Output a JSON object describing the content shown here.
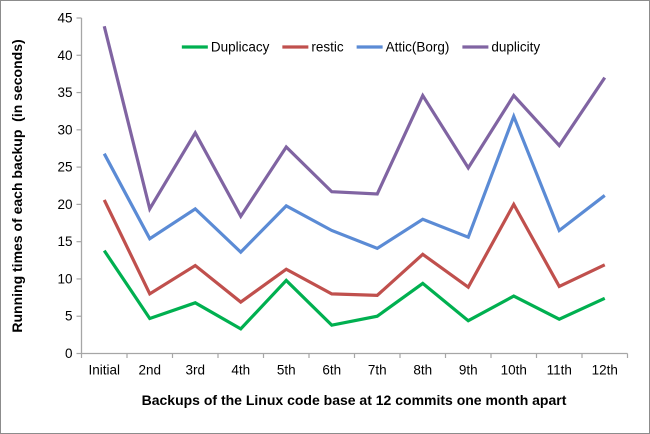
{
  "window": {
    "background": "#ffffff",
    "border_color": "#8c8c8c"
  },
  "chart_data": {
    "type": "line",
    "title": "",
    "xlabel": "Backups of the Linux code base at 12 commits one month apart",
    "ylabel": "Running times of each backup  (in seconds)",
    "ylim": [
      0,
      45
    ],
    "ytick_step": 5,
    "grid": false,
    "legend_position": "top-center",
    "axis_color": "#a6a6a6",
    "text_color": "#000000",
    "line_width": 3.2,
    "categories": [
      "Initial",
      "2nd",
      "3rd",
      "4th",
      "5th",
      "6th",
      "7th",
      "8th",
      "9th",
      "10th",
      "11th",
      "12th"
    ],
    "series": [
      {
        "name": "Duplicacy",
        "color": "#00B050",
        "values": [
          13.8,
          4.7,
          6.8,
          3.3,
          9.8,
          3.8,
          5.0,
          9.4,
          4.4,
          7.7,
          4.6,
          7.4
        ]
      },
      {
        "name": "restic",
        "color": "#C0504D",
        "values": [
          20.6,
          8.0,
          11.8,
          6.9,
          11.3,
          8.0,
          7.8,
          13.3,
          8.9,
          20.0,
          9.0,
          11.9
        ]
      },
      {
        "name": "Attic(Borg)",
        "color": "#5B8BD5",
        "values": [
          26.8,
          15.4,
          19.4,
          13.6,
          19.8,
          16.5,
          14.1,
          18.0,
          15.6,
          31.8,
          16.5,
          21.2
        ]
      },
      {
        "name": "duplicity",
        "color": "#8064A2",
        "values": [
          43.9,
          19.4,
          29.6,
          18.4,
          27.7,
          21.7,
          21.4,
          34.6,
          24.9,
          34.6,
          27.9,
          37.0
        ]
      }
    ]
  }
}
